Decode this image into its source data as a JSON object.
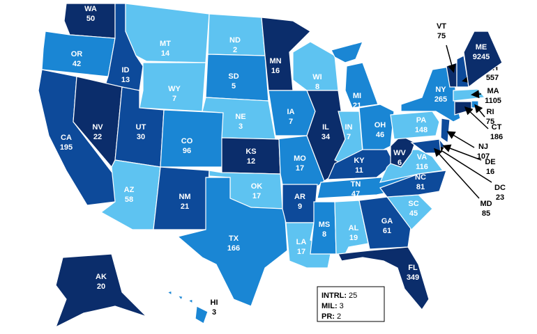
{
  "states": [
    {
      "abbr": "WA",
      "value": 50,
      "color": "#0b2d6b"
    },
    {
      "abbr": "OR",
      "value": 42,
      "color": "#1a86d4"
    },
    {
      "abbr": "CA",
      "value": 195,
      "color": "#0d4a9a"
    },
    {
      "abbr": "ID",
      "value": 13,
      "color": "#0d4a9a"
    },
    {
      "abbr": "NV",
      "value": 22,
      "color": "#0b2d6b"
    },
    {
      "abbr": "MT",
      "value": 14,
      "color": "#5ec3f1"
    },
    {
      "abbr": "WY",
      "value": 7,
      "color": "#5ec3f1"
    },
    {
      "abbr": "UT",
      "value": 30,
      "color": "#0d4a9a"
    },
    {
      "abbr": "AZ",
      "value": 58,
      "color": "#5ec3f1"
    },
    {
      "abbr": "CO",
      "value": 96,
      "color": "#1a86d4"
    },
    {
      "abbr": "NM",
      "value": 21,
      "color": "#0d4a9a"
    },
    {
      "abbr": "ND",
      "value": 2,
      "color": "#5ec3f1"
    },
    {
      "abbr": "SD",
      "value": 5,
      "color": "#1a86d4"
    },
    {
      "abbr": "NE",
      "value": 3,
      "color": "#5ec3f1"
    },
    {
      "abbr": "KS",
      "value": 12,
      "color": "#0b2d6b"
    },
    {
      "abbr": "OK",
      "value": 17,
      "color": "#5ec3f1"
    },
    {
      "abbr": "TX",
      "value": 166,
      "color": "#1a86d4"
    },
    {
      "abbr": "MN",
      "value": 16,
      "color": "#0b2d6b"
    },
    {
      "abbr": "IA",
      "value": 7,
      "color": "#1a86d4"
    },
    {
      "abbr": "MO",
      "value": 17,
      "color": "#1a86d4"
    },
    {
      "abbr": "AR",
      "value": 9,
      "color": "#0d4a9a"
    },
    {
      "abbr": "LA",
      "value": 17,
      "color": "#5ec3f1"
    },
    {
      "abbr": "WI",
      "value": 8,
      "color": "#5ec3f1"
    },
    {
      "abbr": "IL",
      "value": 34,
      "color": "#0b2d6b"
    },
    {
      "abbr": "MI",
      "value": 21,
      "color": "#1a86d4"
    },
    {
      "abbr": "IN",
      "value": 7,
      "color": "#5ec3f1"
    },
    {
      "abbr": "OH",
      "value": 46,
      "color": "#1a86d4"
    },
    {
      "abbr": "KY",
      "value": 11,
      "color": "#0d4a9a"
    },
    {
      "abbr": "TN",
      "value": 47,
      "color": "#1a86d4"
    },
    {
      "abbr": "MS",
      "value": 8,
      "color": "#1a86d4"
    },
    {
      "abbr": "AL",
      "value": 19,
      "color": "#5ec3f1"
    },
    {
      "abbr": "GA",
      "value": 61,
      "color": "#0d4a9a"
    },
    {
      "abbr": "FL",
      "value": 349,
      "color": "#0b2d6b"
    },
    {
      "abbr": "SC",
      "value": 45,
      "color": "#5ec3f1"
    },
    {
      "abbr": "NC",
      "value": 81,
      "color": "#0d4a9a"
    },
    {
      "abbr": "VA",
      "value": 116,
      "color": "#5ec3f1"
    },
    {
      "abbr": "WV",
      "value": 6,
      "color": "#0b2d6b"
    },
    {
      "abbr": "PA",
      "value": 148,
      "color": "#5ec3f1"
    },
    {
      "abbr": "NY",
      "value": 265,
      "color": "#1a86d4"
    },
    {
      "abbr": "VT",
      "value": 75,
      "color": "#0b2d6b"
    },
    {
      "abbr": "NH",
      "value": 557,
      "color": "#0d4a9a"
    },
    {
      "abbr": "ME",
      "value": 9245,
      "color": "#0b2d6b"
    },
    {
      "abbr": "MA",
      "value": 1105,
      "color": "#5ec3f1"
    },
    {
      "abbr": "RI",
      "value": 75,
      "color": "#1a86d4"
    },
    {
      "abbr": "CT",
      "value": 186,
      "color": "#0b2d6b"
    },
    {
      "abbr": "NJ",
      "value": 107,
      "color": "#0d4a9a"
    },
    {
      "abbr": "DE",
      "value": 16,
      "color": "#0d4a9a"
    },
    {
      "abbr": "DC",
      "value": 23,
      "color": "#0d4a9a"
    },
    {
      "abbr": "MD",
      "value": 85,
      "color": "#0d4a9a"
    },
    {
      "abbr": "AK",
      "value": 20,
      "color": "#0b2d6b"
    },
    {
      "abbr": "HI",
      "value": 3,
      "color": "#1a86d4"
    }
  ],
  "other": [
    {
      "label": "INTRL:",
      "value": 25
    },
    {
      "label": "MIL:",
      "value": 3
    },
    {
      "label": "PR:",
      "value": 2
    }
  ]
}
